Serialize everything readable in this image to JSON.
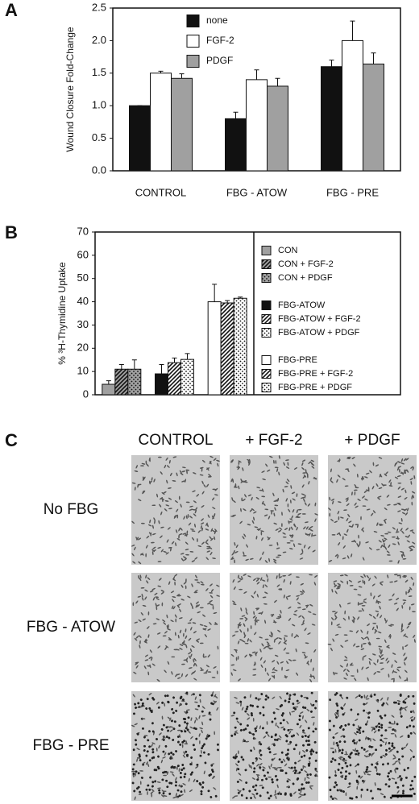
{
  "panel_labels": [
    "A",
    "B",
    "C"
  ],
  "chart_data": [
    {
      "type": "bar",
      "y_label": "Wound Closure Fold-Change",
      "categories": [
        "CONTROL",
        "FBG - ATOW",
        "FBG - PRE"
      ],
      "series": [
        {
          "name": "none",
          "color": "#111111",
          "values": [
            1.0,
            0.8,
            1.6
          ],
          "errors": [
            0,
            0.1,
            0.1
          ]
        },
        {
          "name": "FGF-2",
          "color": "#ffffff",
          "values": [
            1.5,
            1.4,
            2.0
          ],
          "errors": [
            0.03,
            0.15,
            0.3
          ]
        },
        {
          "name": "PDGF",
          "color": "#a0a0a0",
          "values": [
            1.42,
            1.3,
            1.64
          ],
          "errors": [
            0.07,
            0.12,
            0.17
          ]
        }
      ],
      "ylim": [
        0,
        2.5
      ],
      "yticks": [
        {
          "value": 0,
          "label": "0.0"
        },
        {
          "value": 0.5,
          "label": "0.5"
        },
        {
          "value": 1,
          "label": "1.0"
        },
        {
          "value": 1.5,
          "label": "1.5"
        },
        {
          "value": 2,
          "label": "2.0"
        },
        {
          "value": 2.5,
          "label": "2.5"
        }
      ],
      "legend": "top"
    },
    {
      "type": "bar",
      "y_label": "% ³H-Thymidine  Uptake",
      "categories": [
        null,
        null,
        null
      ],
      "series": [
        {
          "name": "CON",
          "color": "#a0a0a0",
          "values": [
            4.5,
            null,
            null
          ],
          "errors": [
            1.5,
            null,
            null
          ]
        },
        {
          "name": "CON + FGF-2",
          "color": "#a0a0a0",
          "pattern": "hatch",
          "values": [
            11,
            null,
            null
          ],
          "errors": [
            2,
            null,
            null
          ]
        },
        {
          "name": "CON + PDGF",
          "color": "#a0a0a0",
          "pattern": "dots",
          "values": [
            11,
            null,
            null
          ],
          "errors": [
            4,
            null,
            null
          ]
        },
        {
          "name": "FBG-ATOW",
          "color": "#111111",
          "values": [
            null,
            9,
            null
          ],
          "errors": [
            null,
            4,
            null
          ]
        },
        {
          "name": "FBG-ATOW + FGF-2",
          "color": "#ffffff",
          "pattern": "hatch",
          "values": [
            null,
            13.8,
            null
          ],
          "errors": [
            null,
            2,
            null
          ]
        },
        {
          "name": "FBG-ATOW + PDGF",
          "color": "#ffffff",
          "pattern": "dots",
          "values": [
            null,
            15.2,
            null
          ],
          "errors": [
            null,
            2.5,
            null
          ]
        },
        {
          "name": "FBG-PRE",
          "color": "#ffffff",
          "values": [
            null,
            null,
            40
          ],
          "errors": [
            null,
            null,
            7.5
          ]
        },
        {
          "name": "FBG-PRE + FGF-2",
          "color": "#ffffff",
          "pattern": "hatch",
          "values": [
            null,
            null,
            39.5
          ],
          "errors": [
            null,
            null,
            1
          ]
        },
        {
          "name": "FBG-PRE + PDGF",
          "color": "#ffffff",
          "pattern": "dots",
          "values": [
            null,
            null,
            41.5
          ],
          "errors": [
            null,
            null,
            0.5
          ]
        }
      ],
      "ylim": [
        0,
        70
      ],
      "yticks": [
        0,
        10,
        20,
        30,
        40,
        50,
        60,
        70
      ],
      "legend": "right"
    }
  ],
  "panel_c": {
    "columns": [
      "CONTROL",
      "+ FGF-2",
      "+ PDGF"
    ],
    "rows": [
      "No FBG",
      "FBG - ATOW",
      "FBG - PRE"
    ]
  }
}
